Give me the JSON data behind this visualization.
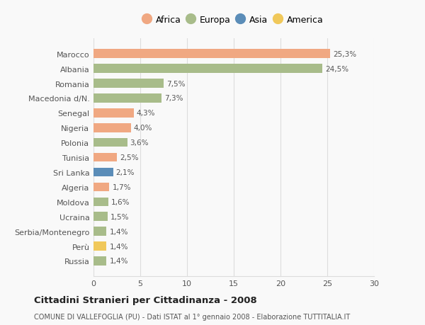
{
  "countries": [
    "Russia",
    "Perù",
    "Serbia/Montenegro",
    "Ucraina",
    "Moldova",
    "Algeria",
    "Sri Lanka",
    "Tunisia",
    "Polonia",
    "Nigeria",
    "Senegal",
    "Macedonia d/N.",
    "Romania",
    "Albania",
    "Marocco"
  ],
  "values": [
    1.4,
    1.4,
    1.4,
    1.5,
    1.6,
    1.7,
    2.1,
    2.5,
    3.6,
    4.0,
    4.3,
    7.3,
    7.5,
    24.5,
    25.3
  ],
  "labels": [
    "1,4%",
    "1,4%",
    "1,4%",
    "1,5%",
    "1,6%",
    "1,7%",
    "2,1%",
    "2,5%",
    "3,6%",
    "4,0%",
    "4,3%",
    "7,3%",
    "7,5%",
    "24,5%",
    "25,3%"
  ],
  "continents": [
    "Europa",
    "America",
    "Europa",
    "Europa",
    "Europa",
    "Africa",
    "Asia",
    "Africa",
    "Europa",
    "Africa",
    "Africa",
    "Europa",
    "Europa",
    "Europa",
    "Africa"
  ],
  "continent_colors": {
    "Africa": "#F0A882",
    "Europa": "#A8BC8A",
    "Asia": "#5B8DB8",
    "America": "#F0C85A"
  },
  "legend_order": [
    "Africa",
    "Europa",
    "Asia",
    "America"
  ],
  "xlim": [
    0,
    30
  ],
  "xticks": [
    0,
    5,
    10,
    15,
    20,
    25,
    30
  ],
  "title": "Cittadini Stranieri per Cittadinanza - 2008",
  "subtitle": "COMUNE DI VALLEFOGLIA (PU) - Dati ISTAT al 1° gennaio 2008 - Elaborazione TUTTITALIA.IT",
  "background_color": "#f9f9f9",
  "grid_color": "#dddddd",
  "bar_height": 0.6
}
